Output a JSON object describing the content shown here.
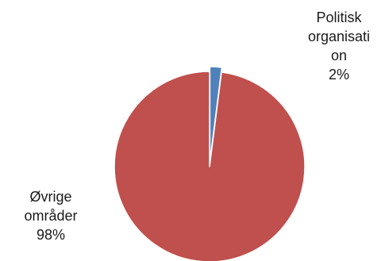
{
  "chart_data": {
    "type": "pie",
    "title": "",
    "slices": [
      {
        "label_lines": [
          "Politisk",
          "organisati",
          "on"
        ],
        "label": "Politisk organisation",
        "percent_label": "2%",
        "value": 2,
        "color": "#4F81BD",
        "exploded": true
      },
      {
        "label_lines": [
          "Øvrige",
          "områder"
        ],
        "label": "Øvrige områder",
        "percent_label": "98%",
        "value": 98,
        "color": "#C0504D",
        "exploded": false
      }
    ],
    "start_angle_deg": 0,
    "direction": "clockwise",
    "legend": "none"
  }
}
